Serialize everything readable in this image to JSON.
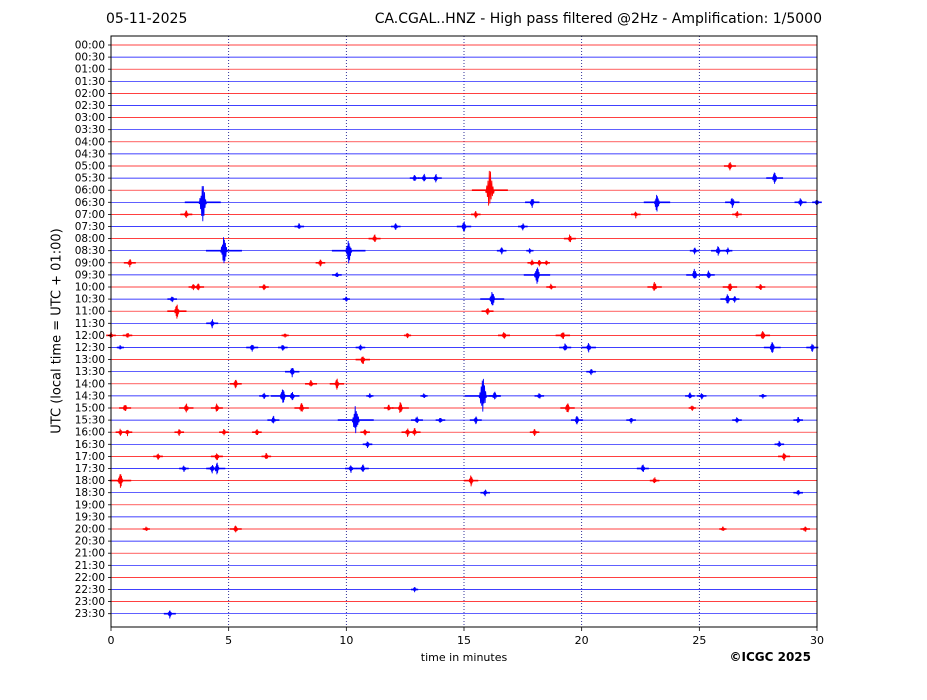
{
  "header": {
    "date": "05-11-2025",
    "title": "CA.CGAL..HNZ - High pass filtered @2Hz - Amplification: 1/5000"
  },
  "copyright": "©ICGC 2025",
  "colors": {
    "odd_trace": "#ff0000",
    "even_trace": "#0000ff",
    "grid": "#000080",
    "frame": "#000000"
  },
  "chart_data": {
    "type": "line",
    "xlabel": "time in minutes",
    "ylabel": "UTC (local time = UTC + 01:00)",
    "xlim": [
      0,
      30
    ],
    "xticks": [
      0,
      5,
      10,
      15,
      20,
      25,
      30
    ],
    "grid": "vertical dotted",
    "rows": [
      "00:00",
      "00:30",
      "01:00",
      "01:30",
      "02:00",
      "02:30",
      "03:00",
      "03:30",
      "04:00",
      "04:30",
      "05:00",
      "05:30",
      "06:00",
      "06:30",
      "07:00",
      "07:30",
      "08:00",
      "08:30",
      "09:00",
      "09:30",
      "10:00",
      "10:30",
      "11:00",
      "11:30",
      "12:00",
      "12:30",
      "13:00",
      "13:30",
      "14:00",
      "14:30",
      "15:00",
      "15:30",
      "16:00",
      "16:30",
      "17:00",
      "17:30",
      "18:00",
      "18:30",
      "19:00",
      "19:30",
      "20:00",
      "20:30",
      "21:00",
      "21:30",
      "22:00",
      "22:30",
      "23:00",
      "23:30"
    ],
    "events": [
      {
        "row": "05:00",
        "t": 26.3,
        "a": 5
      },
      {
        "row": "05:30",
        "t": 12.9,
        "a": 4
      },
      {
        "row": "05:30",
        "t": 13.3,
        "a": 5
      },
      {
        "row": "05:30",
        "t": 13.8,
        "a": 5
      },
      {
        "row": "05:30",
        "t": 28.2,
        "a": 7
      },
      {
        "row": "06:00",
        "t": 16.1,
        "a": 24
      },
      {
        "row": "06:30",
        "t": 3.9,
        "a": 20
      },
      {
        "row": "06:30",
        "t": 17.9,
        "a": 6
      },
      {
        "row": "06:30",
        "t": 23.2,
        "a": 11
      },
      {
        "row": "06:30",
        "t": 26.4,
        "a": 6
      },
      {
        "row": "06:30",
        "t": 29.3,
        "a": 5
      },
      {
        "row": "06:30",
        "t": 30.0,
        "a": 4
      },
      {
        "row": "07:00",
        "t": 3.2,
        "a": 5
      },
      {
        "row": "07:00",
        "t": 15.5,
        "a": 4
      },
      {
        "row": "07:00",
        "t": 22.3,
        "a": 4
      },
      {
        "row": "07:00",
        "t": 26.6,
        "a": 4
      },
      {
        "row": "07:30",
        "t": 8.0,
        "a": 4
      },
      {
        "row": "07:30",
        "t": 12.1,
        "a": 4
      },
      {
        "row": "07:30",
        "t": 15.0,
        "a": 6
      },
      {
        "row": "07:30",
        "t": 17.5,
        "a": 4
      },
      {
        "row": "08:00",
        "t": 11.2,
        "a": 5
      },
      {
        "row": "08:00",
        "t": 19.5,
        "a": 5
      },
      {
        "row": "08:30",
        "t": 4.8,
        "a": 16
      },
      {
        "row": "08:30",
        "t": 10.1,
        "a": 14
      },
      {
        "row": "08:30",
        "t": 16.6,
        "a": 4
      },
      {
        "row": "08:30",
        "t": 17.8,
        "a": 3
      },
      {
        "row": "08:30",
        "t": 24.8,
        "a": 4
      },
      {
        "row": "08:30",
        "t": 25.8,
        "a": 6
      },
      {
        "row": "08:30",
        "t": 26.2,
        "a": 4
      },
      {
        "row": "09:00",
        "t": 0.8,
        "a": 5
      },
      {
        "row": "09:00",
        "t": 8.9,
        "a": 4
      },
      {
        "row": "09:00",
        "t": 17.9,
        "a": 4
      },
      {
        "row": "09:00",
        "t": 18.2,
        "a": 4
      },
      {
        "row": "09:00",
        "t": 18.5,
        "a": 3
      },
      {
        "row": "09:30",
        "t": 9.6,
        "a": 4
      },
      {
        "row": "09:30",
        "t": 18.1,
        "a": 11
      },
      {
        "row": "09:30",
        "t": 24.8,
        "a": 7
      },
      {
        "row": "09:30",
        "t": 25.4,
        "a": 5
      },
      {
        "row": "10:00",
        "t": 3.5,
        "a": 4
      },
      {
        "row": "10:00",
        "t": 3.7,
        "a": 5
      },
      {
        "row": "10:00",
        "t": 6.5,
        "a": 4
      },
      {
        "row": "10:00",
        "t": 18.7,
        "a": 4
      },
      {
        "row": "10:00",
        "t": 23.1,
        "a": 6
      },
      {
        "row": "10:00",
        "t": 26.3,
        "a": 6
      },
      {
        "row": "10:00",
        "t": 27.6,
        "a": 4
      },
      {
        "row": "10:30",
        "t": 2.6,
        "a": 4
      },
      {
        "row": "10:30",
        "t": 10.0,
        "a": 3
      },
      {
        "row": "10:30",
        "t": 16.2,
        "a": 10
      },
      {
        "row": "10:30",
        "t": 26.2,
        "a": 6
      },
      {
        "row": "10:30",
        "t": 26.5,
        "a": 4
      },
      {
        "row": "11:00",
        "t": 2.8,
        "a": 8
      },
      {
        "row": "11:00",
        "t": 16.0,
        "a": 5
      },
      {
        "row": "11:30",
        "t": 4.3,
        "a": 5
      },
      {
        "row": "12:00",
        "t": 0.0,
        "a": 4
      },
      {
        "row": "12:00",
        "t": 0.7,
        "a": 4
      },
      {
        "row": "12:00",
        "t": 7.4,
        "a": 3
      },
      {
        "row": "12:00",
        "t": 12.6,
        "a": 3
      },
      {
        "row": "12:00",
        "t": 16.7,
        "a": 5
      },
      {
        "row": "12:00",
        "t": 19.2,
        "a": 6
      },
      {
        "row": "12:00",
        "t": 27.7,
        "a": 6
      },
      {
        "row": "12:30",
        "t": 0.4,
        "a": 3
      },
      {
        "row": "12:30",
        "t": 6.0,
        "a": 5
      },
      {
        "row": "12:30",
        "t": 7.3,
        "a": 4
      },
      {
        "row": "12:30",
        "t": 10.6,
        "a": 4
      },
      {
        "row": "12:30",
        "t": 19.3,
        "a": 5
      },
      {
        "row": "12:30",
        "t": 20.3,
        "a": 6
      },
      {
        "row": "12:30",
        "t": 28.1,
        "a": 7
      },
      {
        "row": "12:30",
        "t": 29.8,
        "a": 5
      },
      {
        "row": "13:00",
        "t": 10.7,
        "a": 6
      },
      {
        "row": "13:30",
        "t": 7.7,
        "a": 6
      },
      {
        "row": "13:30",
        "t": 20.4,
        "a": 4
      },
      {
        "row": "14:00",
        "t": 5.3,
        "a": 5
      },
      {
        "row": "14:00",
        "t": 8.5,
        "a": 5
      },
      {
        "row": "14:00",
        "t": 9.6,
        "a": 6
      },
      {
        "row": "14:30",
        "t": 6.5,
        "a": 4
      },
      {
        "row": "14:30",
        "t": 7.3,
        "a": 10
      },
      {
        "row": "14:30",
        "t": 7.7,
        "a": 6
      },
      {
        "row": "14:30",
        "t": 11.0,
        "a": 3
      },
      {
        "row": "14:30",
        "t": 13.3,
        "a": 3
      },
      {
        "row": "14:30",
        "t": 15.8,
        "a": 20
      },
      {
        "row": "14:30",
        "t": 16.3,
        "a": 5
      },
      {
        "row": "14:30",
        "t": 18.2,
        "a": 4
      },
      {
        "row": "14:30",
        "t": 24.6,
        "a": 4
      },
      {
        "row": "14:30",
        "t": 25.1,
        "a": 4
      },
      {
        "row": "14:30",
        "t": 27.7,
        "a": 3
      },
      {
        "row": "15:00",
        "t": 0.6,
        "a": 5
      },
      {
        "row": "15:00",
        "t": 3.2,
        "a": 6
      },
      {
        "row": "15:00",
        "t": 4.5,
        "a": 5
      },
      {
        "row": "15:00",
        "t": 8.1,
        "a": 6
      },
      {
        "row": "15:00",
        "t": 11.8,
        "a": 4
      },
      {
        "row": "15:00",
        "t": 12.3,
        "a": 7
      },
      {
        "row": "15:00",
        "t": 19.4,
        "a": 6
      },
      {
        "row": "15:00",
        "t": 24.7,
        "a": 3
      },
      {
        "row": "15:30",
        "t": 6.9,
        "a": 5
      },
      {
        "row": "15:30",
        "t": 10.4,
        "a": 18
      },
      {
        "row": "15:30",
        "t": 13.0,
        "a": 5
      },
      {
        "row": "15:30",
        "t": 14.0,
        "a": 4
      },
      {
        "row": "15:30",
        "t": 15.5,
        "a": 5
      },
      {
        "row": "15:30",
        "t": 19.8,
        "a": 5
      },
      {
        "row": "15:30",
        "t": 22.1,
        "a": 4
      },
      {
        "row": "15:30",
        "t": 26.6,
        "a": 4
      },
      {
        "row": "15:30",
        "t": 29.2,
        "a": 4
      },
      {
        "row": "16:00",
        "t": 0.4,
        "a": 4
      },
      {
        "row": "16:00",
        "t": 0.7,
        "a": 4
      },
      {
        "row": "16:00",
        "t": 2.9,
        "a": 4
      },
      {
        "row": "16:00",
        "t": 4.8,
        "a": 4
      },
      {
        "row": "16:00",
        "t": 6.2,
        "a": 4
      },
      {
        "row": "16:00",
        "t": 10.8,
        "a": 4
      },
      {
        "row": "16:00",
        "t": 12.6,
        "a": 5
      },
      {
        "row": "16:00",
        "t": 12.9,
        "a": 5
      },
      {
        "row": "16:00",
        "t": 18.0,
        "a": 4
      },
      {
        "row": "16:30",
        "t": 10.9,
        "a": 4
      },
      {
        "row": "16:30",
        "t": 28.4,
        "a": 4
      },
      {
        "row": "17:00",
        "t": 2.0,
        "a": 4
      },
      {
        "row": "17:00",
        "t": 4.5,
        "a": 5
      },
      {
        "row": "17:00",
        "t": 6.6,
        "a": 4
      },
      {
        "row": "17:00",
        "t": 28.6,
        "a": 5
      },
      {
        "row": "17:30",
        "t": 3.1,
        "a": 4
      },
      {
        "row": "17:30",
        "t": 4.3,
        "a": 5
      },
      {
        "row": "17:30",
        "t": 4.5,
        "a": 7
      },
      {
        "row": "17:30",
        "t": 10.2,
        "a": 5
      },
      {
        "row": "17:30",
        "t": 10.7,
        "a": 5
      },
      {
        "row": "17:30",
        "t": 22.6,
        "a": 5
      },
      {
        "row": "18:00",
        "t": 0.4,
        "a": 9
      },
      {
        "row": "18:00",
        "t": 15.3,
        "a": 6
      },
      {
        "row": "18:00",
        "t": 23.1,
        "a": 4
      },
      {
        "row": "18:30",
        "t": 15.9,
        "a": 4
      },
      {
        "row": "18:30",
        "t": 29.2,
        "a": 4
      },
      {
        "row": "20:00",
        "t": 1.5,
        "a": 3
      },
      {
        "row": "20:00",
        "t": 5.3,
        "a": 5
      },
      {
        "row": "20:00",
        "t": 26.0,
        "a": 3
      },
      {
        "row": "20:00",
        "t": 29.5,
        "a": 4
      },
      {
        "row": "22:30",
        "t": 12.9,
        "a": 3
      },
      {
        "row": "23:30",
        "t": 2.5,
        "a": 5
      }
    ]
  }
}
